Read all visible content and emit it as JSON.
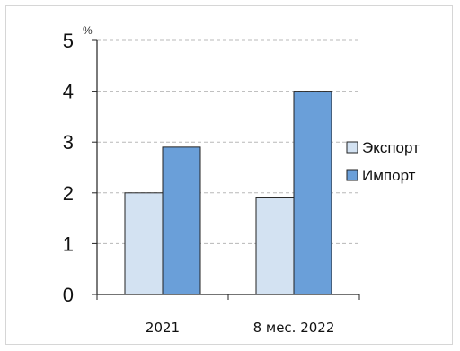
{
  "chart_data": {
    "type": "bar",
    "unit": "%",
    "categories": [
      "2021",
      "8 мес. 2022"
    ],
    "series": [
      {
        "name": "Экспорт",
        "values": [
          2.0,
          1.9
        ],
        "color": "#d3e2f2"
      },
      {
        "name": "Импорт",
        "values": [
          2.9,
          4.0
        ],
        "color": "#6a9fd9"
      }
    ],
    "ylim": [
      0,
      5
    ],
    "yticks": [
      "0",
      "1",
      "2",
      "3",
      "4",
      "5"
    ],
    "grid": true,
    "legend_position": "right"
  }
}
